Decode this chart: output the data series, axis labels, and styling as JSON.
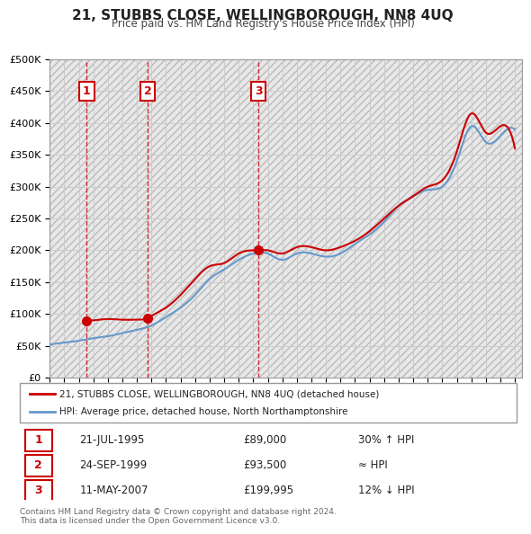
{
  "title": "21, STUBBS CLOSE, WELLINGBOROUGH, NN8 4UQ",
  "subtitle": "Price paid vs. HM Land Registry's House Price Index (HPI)",
  "footer": "Contains HM Land Registry data © Crown copyright and database right 2024.\nThis data is licensed under the Open Government Licence v3.0.",
  "legend_line1": "21, STUBBS CLOSE, WELLINGBOROUGH, NN8 4UQ (detached house)",
  "legend_line2": "HPI: Average price, detached house, North Northamptonshire",
  "transactions": [
    {
      "num": 1,
      "date": "21-JUL-1995",
      "price": "£89,000",
      "relation": "30% ↑ HPI",
      "year": 1995.55
    },
    {
      "num": 2,
      "date": "24-SEP-1999",
      "price": "£93,500",
      "relation": "≈ HPI",
      "year": 1999.73
    },
    {
      "num": 3,
      "date": "11-MAY-2007",
      "price": "£199,995",
      "relation": "12% ↓ HPI",
      "year": 2007.36
    }
  ],
  "price_points": [
    [
      1995.55,
      89000
    ],
    [
      1999.73,
      93500
    ],
    [
      2007.36,
      199995
    ]
  ],
  "hpi_years": [
    1993,
    1994,
    1995,
    1996,
    1997,
    1998,
    1999,
    2000,
    2001,
    2002,
    2003,
    2004,
    2005,
    2006,
    2007,
    2008,
    2009,
    2010,
    2011,
    2012,
    2013,
    2014,
    2015,
    2016,
    2017,
    2018,
    2019,
    2020,
    2021,
    2022,
    2023,
    2024,
    2025
  ],
  "hpi_values": [
    52000,
    55000,
    58000,
    62000,
    65000,
    70000,
    75000,
    82000,
    95000,
    110000,
    130000,
    155000,
    170000,
    185000,
    195000,
    195000,
    185000,
    195000,
    195000,
    190000,
    195000,
    210000,
    225000,
    245000,
    270000,
    285000,
    295000,
    300000,
    340000,
    395000,
    370000,
    380000,
    390000
  ],
  "price_line_years": [
    1995.55,
    1996,
    1997,
    1998,
    1999.0,
    1999.73,
    2000,
    2001,
    2002,
    2003,
    2004,
    2005,
    2006,
    2007.0,
    2007.36,
    2008,
    2009,
    2010,
    2011,
    2012,
    2013,
    2014,
    2015,
    2016,
    2017,
    2018,
    2019,
    2020,
    2021,
    2022,
    2023,
    2024,
    2025
  ],
  "price_line_values": [
    89000,
    90000,
    92000,
    91000,
    91000,
    93500,
    97000,
    110000,
    130000,
    155000,
    175000,
    180000,
    195000,
    200000,
    199995,
    200000,
    195000,
    205000,
    205000,
    200000,
    205000,
    215000,
    230000,
    250000,
    270000,
    285000,
    300000,
    310000,
    355000,
    415000,
    385000,
    395000,
    360000
  ],
  "ylim": [
    0,
    500000
  ],
  "yticks": [
    0,
    50000,
    100000,
    150000,
    200000,
    250000,
    300000,
    350000,
    400000,
    450000,
    500000
  ],
  "xlim": [
    1993,
    2025.5
  ],
  "xticks": [
    1993,
    1994,
    1995,
    1996,
    1997,
    1998,
    1999,
    2000,
    2001,
    2002,
    2003,
    2004,
    2005,
    2006,
    2007,
    2008,
    2009,
    2010,
    2011,
    2012,
    2013,
    2014,
    2015,
    2016,
    2017,
    2018,
    2019,
    2020,
    2021,
    2022,
    2023,
    2024,
    2025
  ],
  "grid_color": "#cccccc",
  "hatch_color": "#dddddd",
  "price_color": "#cc0000",
  "hpi_color": "#6699cc",
  "vline_color": "#cc0000",
  "marker_color": "#cc0000",
  "label_box_color": "#cc0000",
  "bg_color": "#ffffff"
}
